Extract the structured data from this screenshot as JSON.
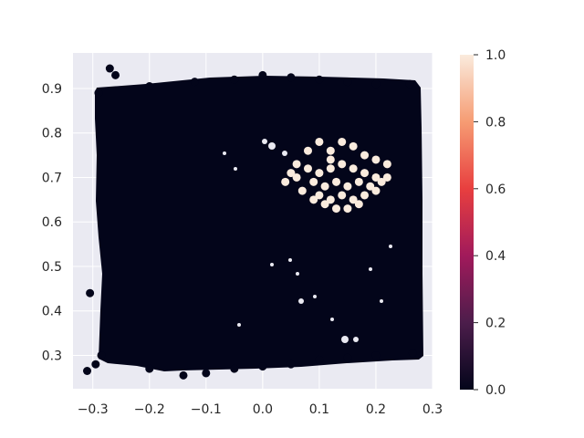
{
  "chart_data": [
    {
      "type": "scatter",
      "title": "",
      "xlabel": "",
      "ylabel": "",
      "xlim": [
        -0.335,
        0.3
      ],
      "ylim": [
        0.225,
        0.98
      ],
      "x_ticks": [
        "−0.3",
        "−0.2",
        "−0.1",
        "0.0",
        "0.1",
        "0.2",
        "0.3"
      ],
      "x_tick_values": [
        -0.3,
        -0.2,
        -0.1,
        0.0,
        0.1,
        0.2,
        0.3
      ],
      "y_ticks": [
        "0.3",
        "0.4",
        "0.5",
        "0.6",
        "0.7",
        "0.8",
        "0.9"
      ],
      "y_tick_values": [
        0.3,
        0.4,
        0.5,
        0.6,
        0.7,
        0.8,
        0.9
      ],
      "grid": true,
      "background": "#eaeaf2",
      "colormap": "rocket",
      "series": [
        {
          "color_value": 0,
          "description_region": {
            "x": [
              -0.3,
              0.27
            ],
            "y": [
              0.26,
              0.95
            ]
          },
          "points": [
            [
              -0.31,
              0.265
            ],
            [
              -0.295,
              0.28
            ],
            [
              -0.285,
              0.3
            ],
            [
              -0.305,
              0.44
            ],
            [
              -0.29,
              0.89
            ],
            [
              -0.27,
              0.945
            ],
            [
              -0.26,
              0.93
            ],
            [
              -0.2,
              0.905
            ],
            [
              -0.12,
              0.915
            ],
            [
              -0.05,
              0.92
            ],
            [
              0.0,
              0.93
            ],
            [
              0.05,
              0.925
            ],
            [
              0.1,
              0.92
            ],
            [
              0.15,
              0.915
            ],
            [
              0.2,
              0.91
            ],
            [
              0.26,
              0.91
            ],
            [
              -0.14,
              0.255
            ],
            [
              -0.1,
              0.26
            ],
            [
              -0.05,
              0.27
            ],
            [
              0.0,
              0.275
            ],
            [
              0.05,
              0.28
            ],
            [
              0.1,
              0.29
            ],
            [
              0.15,
              0.295
            ],
            [
              0.2,
              0.3
            ],
            [
              0.265,
              0.305
            ],
            [
              -0.2,
              0.27
            ]
          ]
        },
        {
          "color_value": 1,
          "points": [
            [
              0.08,
              0.76
            ],
            [
              0.1,
              0.78
            ],
            [
              0.12,
              0.76
            ],
            [
              0.14,
              0.78
            ],
            [
              0.16,
              0.77
            ],
            [
              0.18,
              0.75
            ],
            [
              0.2,
              0.74
            ],
            [
              0.22,
              0.73
            ],
            [
              0.06,
              0.73
            ],
            [
              0.08,
              0.72
            ],
            [
              0.1,
              0.71
            ],
            [
              0.12,
              0.72
            ],
            [
              0.14,
              0.73
            ],
            [
              0.16,
              0.72
            ],
            [
              0.18,
              0.71
            ],
            [
              0.2,
              0.7
            ],
            [
              0.21,
              0.69
            ],
            [
              0.04,
              0.69
            ],
            [
              0.06,
              0.7
            ],
            [
              0.09,
              0.69
            ],
            [
              0.11,
              0.68
            ],
            [
              0.13,
              0.69
            ],
            [
              0.15,
              0.68
            ],
            [
              0.17,
              0.69
            ],
            [
              0.19,
              0.68
            ],
            [
              0.07,
              0.67
            ],
            [
              0.1,
              0.66
            ],
            [
              0.12,
              0.65
            ],
            [
              0.14,
              0.66
            ],
            [
              0.16,
              0.65
            ],
            [
              0.18,
              0.66
            ],
            [
              0.2,
              0.67
            ],
            [
              0.11,
              0.64
            ],
            [
              0.13,
              0.63
            ],
            [
              0.17,
              0.64
            ],
            [
              0.15,
              0.63
            ],
            [
              0.09,
              0.65
            ],
            [
              0.22,
              0.7
            ],
            [
              0.05,
              0.71
            ],
            [
              0.12,
              0.74
            ]
          ]
        }
      ]
    },
    {
      "type": "colorbar",
      "range": [
        0.0,
        1.0
      ],
      "ticks": [
        "0.0",
        "0.2",
        "0.4",
        "0.6",
        "0.8",
        "1.0"
      ],
      "tick_values": [
        0.0,
        0.2,
        0.4,
        0.6,
        0.8,
        1.0
      ],
      "stops": [
        "#03051a",
        "#4c1d4b",
        "#a11a5b",
        "#e83f3f",
        "#f69c73",
        "#faebdd"
      ]
    }
  ]
}
